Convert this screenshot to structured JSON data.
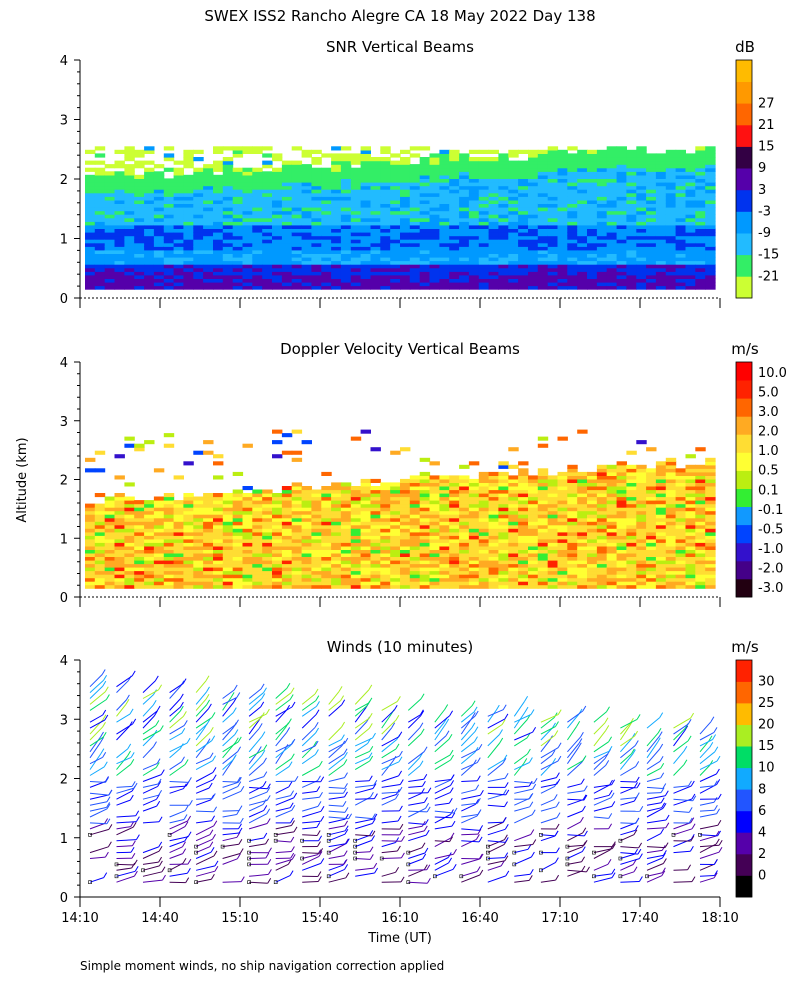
{
  "title": "SWEX ISS2 Rancho Alegre CA  18 May 2022 Day 138",
  "ylabel": "Altitude (km)",
  "xlabel": "Time (UT)",
  "footnote": "Simple moment winds, no ship navigation correction applied",
  "chart_data": [
    {
      "type": "heatmap",
      "title": "SNR Vertical Beams",
      "units": "dB",
      "x_ticks": [
        "14:10",
        "14:40",
        "15:10",
        "15:40",
        "16:10",
        "16:40",
        "17:10",
        "17:40",
        "18:10"
      ],
      "xlim_minutes": [
        850,
        1090
      ],
      "y_ticks": [
        "0",
        "1",
        "2",
        "3",
        "4"
      ],
      "ylim_km": [
        0,
        4
      ],
      "colorbar": {
        "labels": [
          "-21",
          "-15",
          "-9",
          "-3",
          "3",
          "9",
          "15",
          "21",
          "27"
        ],
        "colors": [
          "#ccff33",
          "#33ee66",
          "#22bbff",
          "#0099ff",
          "#0033ee",
          "#5500aa",
          "#330044",
          "#ff1111",
          "#ff6600",
          "#ff9900",
          "#ffbb00"
        ]
      }
    },
    {
      "type": "heatmap",
      "title": "Doppler Velocity Vertical Beams",
      "units": "m/s",
      "x_ticks": [
        "14:10",
        "14:40",
        "15:10",
        "15:40",
        "16:10",
        "16:40",
        "17:10",
        "17:40",
        "18:10"
      ],
      "y_ticks": [
        "0",
        "1",
        "2",
        "3",
        "4"
      ],
      "ylim_km": [
        0,
        4
      ],
      "colorbar": {
        "labels": [
          "10.0",
          "5.0",
          "3.0",
          "2.0",
          "1.0",
          "0.5",
          "0.1",
          "-0.1",
          "-0.5",
          "-1.0",
          "-2.0",
          "-3.0"
        ],
        "colors": [
          "#220011",
          "#440088",
          "#3311cc",
          "#0044ff",
          "#1199ff",
          "#33ee33",
          "#bbee11",
          "#ffff33",
          "#ffdd33",
          "#ffaa22",
          "#ff6600",
          "#ff2200",
          "#ff0000"
        ]
      }
    },
    {
      "type": "wind-barbs",
      "title": "Winds (10 minutes)",
      "units": "m/s",
      "x_ticks": [
        "14:10",
        "14:40",
        "15:10",
        "15:40",
        "16:10",
        "16:40",
        "17:10",
        "17:40",
        "18:10"
      ],
      "y_ticks": [
        "0",
        "1",
        "2",
        "3",
        "4"
      ],
      "ylim_km": [
        0,
        4
      ],
      "averaging": "10 minutes",
      "colorbar": {
        "labels": [
          "0",
          "2",
          "4",
          "6",
          "8",
          "10",
          "15",
          "20",
          "25",
          "30"
        ],
        "colors": [
          "#000000",
          "#440055",
          "#5500aa",
          "#0000ff",
          "#2255ff",
          "#11aaff",
          "#00dd66",
          "#aaee22",
          "#ffbb00",
          "#ff6600",
          "#ff2200"
        ]
      }
    }
  ]
}
